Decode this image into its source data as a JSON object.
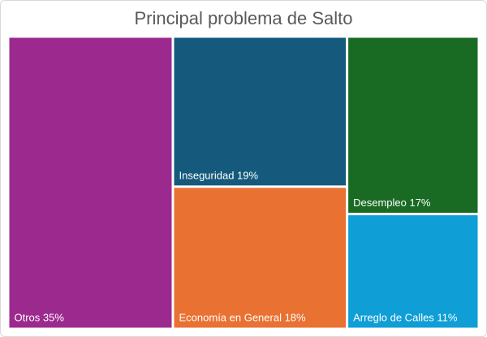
{
  "chart_data": {
    "type": "treemap",
    "title": "Principal problema de Salto",
    "items": [
      {
        "name": "Otros",
        "value": 35,
        "label": "Otros 35%",
        "color": "#9C2A8E"
      },
      {
        "name": "Inseguridad",
        "value": 19,
        "label": "Inseguridad 19%",
        "color": "#155A7C"
      },
      {
        "name": "Economía en General",
        "value": 18,
        "label": "Economía en General 18%",
        "color": "#E97132"
      },
      {
        "name": "Desempleo",
        "value": 17,
        "label": "Desempleo 17%",
        "color": "#196B24"
      },
      {
        "name": "Arreglo de Calles",
        "value": 11,
        "label": "Arreglo de Calles 11%",
        "color": "#0F9ED5"
      }
    ]
  }
}
